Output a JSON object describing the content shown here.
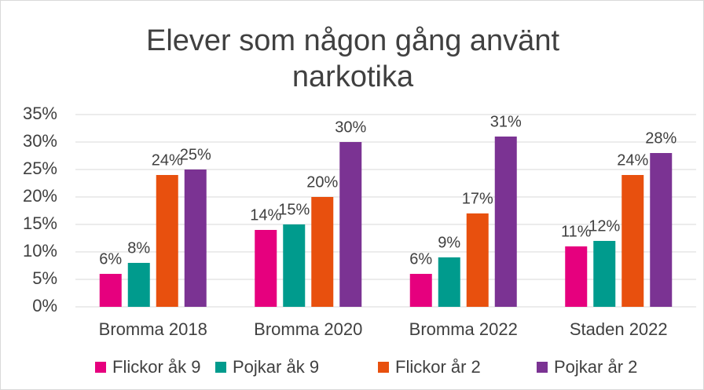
{
  "chart_data": {
    "type": "bar",
    "title": "Elever som någon gång använt narkotika",
    "categories": [
      "Bromma 2018",
      "Bromma 2020",
      "Bromma 2022",
      "Staden 2022"
    ],
    "series": [
      {
        "name": "Flickor åk 9",
        "color": "#e6007e",
        "values": [
          6,
          14,
          6,
          11
        ],
        "value_labels": [
          "6%",
          "14%",
          "6%",
          "11%"
        ]
      },
      {
        "name": "Pojkar åk 9",
        "color": "#009b8d",
        "values": [
          8,
          15,
          9,
          12
        ],
        "value_labels": [
          "8%",
          "15%",
          "9%",
          "12%"
        ]
      },
      {
        "name": "Flickor år 2",
        "color": "#e8500e",
        "values": [
          24,
          20,
          17,
          24
        ],
        "value_labels": [
          "24%",
          "20%",
          "17%",
          "24%"
        ]
      },
      {
        "name": "Pojkar år 2",
        "color": "#7b3393",
        "values": [
          25,
          30,
          31,
          28
        ],
        "value_labels": [
          "25%",
          "30%",
          "31%",
          "28%"
        ]
      }
    ],
    "ylim": [
      0,
      35
    ],
    "yticks": [
      {
        "value": 0,
        "label": "0%"
      },
      {
        "value": 5,
        "label": "5%"
      },
      {
        "value": 10,
        "label": "10%"
      },
      {
        "value": 15,
        "label": "15%"
      },
      {
        "value": 20,
        "label": "20%"
      },
      {
        "value": 25,
        "label": "25%"
      },
      {
        "value": 30,
        "label": "30%"
      },
      {
        "value": 35,
        "label": "35%"
      }
    ],
    "grid": true,
    "legend": "bottom"
  }
}
